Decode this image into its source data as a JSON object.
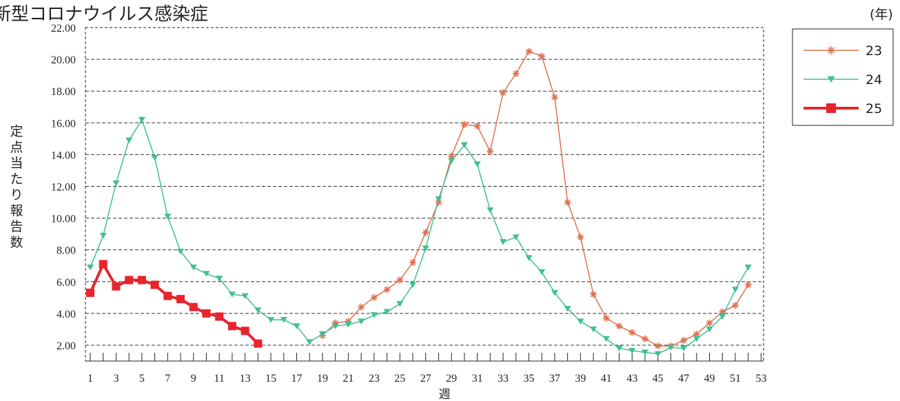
{
  "title": "新型コロナウイルス感染症",
  "unit_label": "(年)",
  "chart_data": {
    "type": "line",
    "ylabel": "定点当たり報告数",
    "xlabel": "週",
    "xlim": [
      1,
      53
    ],
    "ylim": [
      1,
      22
    ],
    "yticks": [
      "2.00",
      "4.00",
      "6.00",
      "8.00",
      "10.00",
      "12.00",
      "14.00",
      "16.00",
      "18.00",
      "20.00",
      "22.00"
    ],
    "ytick_values": [
      2,
      4,
      6,
      8,
      10,
      12,
      14,
      16,
      18,
      20,
      22
    ],
    "xticks": [
      "1",
      "3",
      "5",
      "7",
      "9",
      "11",
      "13",
      "15",
      "17",
      "19",
      "21",
      "23",
      "25",
      "27",
      "29",
      "31",
      "33",
      "35",
      "37",
      "39",
      "41",
      "43",
      "45",
      "47",
      "49",
      "51",
      "53"
    ],
    "xtick_values": [
      1,
      3,
      5,
      7,
      9,
      11,
      13,
      15,
      17,
      19,
      21,
      23,
      25,
      27,
      29,
      31,
      33,
      35,
      37,
      39,
      41,
      43,
      45,
      47,
      49,
      51,
      53
    ],
    "grid": "horizontal dashed",
    "legend_position": "right",
    "series": [
      {
        "name": "23",
        "color": "#e07050",
        "marker": "asterisk",
        "line_width": 1.5,
        "x": [
          19,
          20,
          21,
          22,
          23,
          24,
          25,
          26,
          27,
          28,
          29,
          30,
          31,
          32,
          33,
          34,
          35,
          36,
          37,
          38,
          39,
          40,
          41,
          42,
          43,
          44,
          45,
          46,
          47,
          48,
          49,
          50,
          51,
          52
        ],
        "y": [
          2.6,
          3.4,
          3.5,
          4.4,
          5.0,
          5.5,
          6.1,
          7.2,
          9.1,
          11.0,
          13.9,
          15.9,
          15.8,
          14.2,
          17.9,
          19.1,
          20.5,
          20.2,
          17.6,
          11.0,
          8.8,
          5.2,
          3.7,
          3.2,
          2.8,
          2.4,
          1.95,
          1.95,
          2.3,
          2.7,
          3.4,
          4.1,
          4.5,
          5.8
        ]
      },
      {
        "name": "24",
        "color": "#40c090",
        "marker": "triangle-down",
        "line_width": 1.5,
        "x": [
          1,
          2,
          3,
          4,
          5,
          6,
          7,
          8,
          9,
          10,
          11,
          12,
          13,
          14,
          15,
          16,
          17,
          18,
          19,
          20,
          21,
          22,
          23,
          24,
          25,
          26,
          27,
          28,
          29,
          30,
          31,
          32,
          33,
          34,
          35,
          36,
          37,
          38,
          39,
          40,
          41,
          42,
          43,
          44,
          45,
          46,
          47,
          48,
          49,
          50,
          51,
          52
        ],
        "y": [
          6.9,
          8.9,
          12.2,
          14.9,
          16.2,
          13.8,
          10.1,
          7.9,
          6.9,
          6.5,
          6.2,
          5.2,
          5.1,
          4.2,
          3.6,
          3.6,
          3.2,
          2.2,
          2.7,
          3.2,
          3.3,
          3.5,
          3.9,
          4.1,
          4.6,
          5.8,
          8.1,
          11.2,
          13.6,
          14.6,
          13.4,
          10.5,
          8.5,
          8.8,
          7.5,
          6.6,
          5.3,
          4.3,
          3.5,
          3.0,
          2.4,
          1.8,
          1.65,
          1.55,
          1.45,
          1.85,
          1.8,
          2.4,
          3.0,
          3.8,
          5.5,
          6.9
        ]
      },
      {
        "name": "25",
        "color": "#e8242c",
        "marker": "square",
        "line_width": 4,
        "x": [
          1,
          2,
          3,
          4,
          5,
          6,
          7,
          8,
          9,
          10,
          11,
          12,
          13,
          14
        ],
        "y": [
          5.3,
          7.1,
          5.7,
          6.1,
          6.1,
          5.8,
          5.1,
          4.9,
          4.4,
          4.0,
          3.8,
          3.2,
          2.9,
          2.1
        ]
      }
    ]
  }
}
